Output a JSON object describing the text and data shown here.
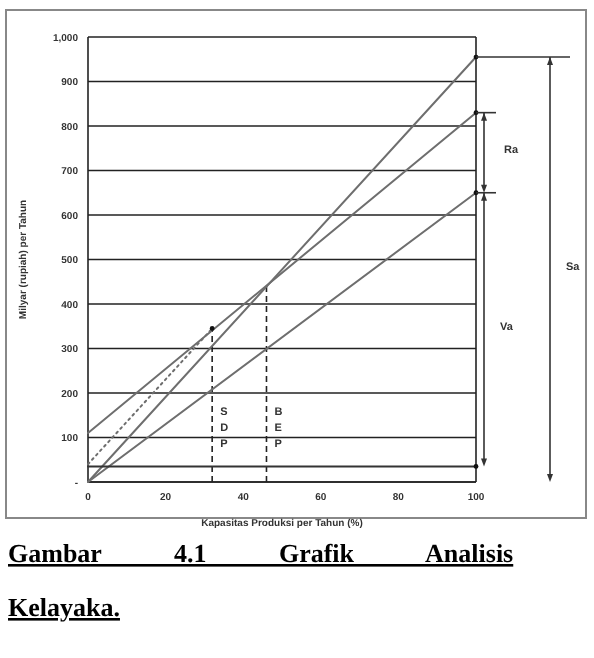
{
  "chart_data": {
    "type": "line",
    "xlabel": "Kapasitas Produksi per Tahun (%)",
    "ylabel": "Milyar (rupiah) per Tahun",
    "xlim": [
      0,
      100
    ],
    "xticks": [
      0,
      20,
      40,
      60,
      80,
      100
    ],
    "ylim": [
      0,
      1000
    ],
    "yticks": [
      {
        "value": 0,
        "label": "-"
      },
      100,
      200,
      300,
      400,
      500,
      600,
      700,
      800,
      900,
      {
        "value": 1000,
        "label": "1,000"
      }
    ],
    "grid": "y",
    "series": [
      {
        "color": "#6e6e6e",
        "x": [
          0,
          100
        ],
        "values": [
          0,
          955
        ]
      },
      {
        "color": "#6e6e6e",
        "x": [
          0,
          100
        ],
        "values": [
          110,
          830
        ]
      },
      {
        "color": "#6e6e6e",
        "x": [
          0,
          100
        ],
        "values": [
          0,
          650
        ]
      },
      {
        "color": "#333333",
        "x": [
          0,
          100
        ],
        "values": [
          35,
          35
        ]
      },
      {
        "color": "#6e6e6e",
        "x": [
          0,
          32
        ],
        "values": [
          40,
          345
        ],
        "line_style": "dotted"
      }
    ],
    "ref_lines": [
      {
        "axis": "x",
        "value": 32,
        "label": "SDP",
        "line_style": "dashed"
      },
      {
        "axis": "x",
        "value": 46,
        "label": "BEP",
        "line_style": "dashed"
      }
    ],
    "annotations": [
      "Ra",
      "Va",
      "Sa",
      "Gambar 4.1 Grafik Analisis Kelayaka."
    ]
  }
}
